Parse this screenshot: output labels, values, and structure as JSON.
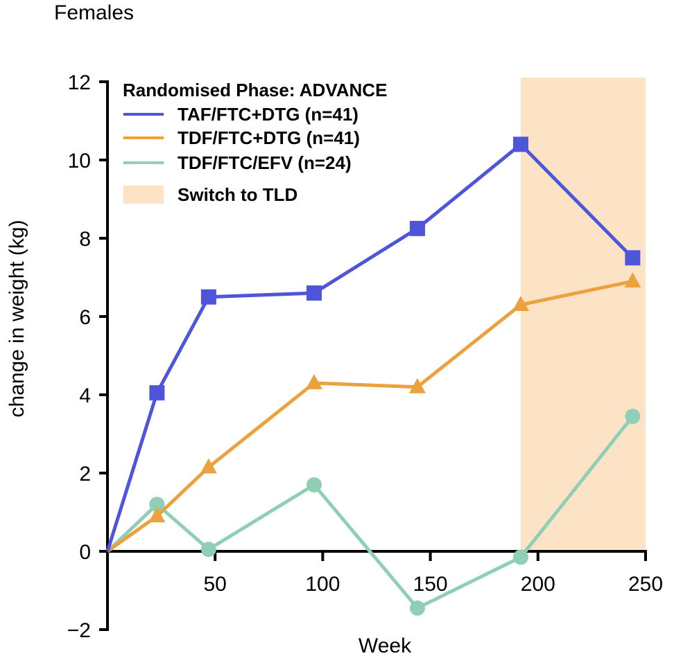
{
  "chart_data": {
    "type": "line",
    "title": "Females",
    "xlabel": "Week",
    "ylabel": "change in weight (kg)",
    "xlim": [
      0,
      250
    ],
    "ylim": [
      -2,
      12
    ],
    "x_ticks": [
      50,
      100,
      150,
      200,
      250
    ],
    "y_ticks": [
      -2,
      0,
      2,
      4,
      6,
      8,
      10,
      12
    ],
    "y_tick_labels": [
      "−2",
      "0",
      "2",
      "4",
      "6",
      "8",
      "10",
      "12"
    ],
    "shaded_region": {
      "x_range": [
        192,
        250
      ],
      "label": "Switch to TLD",
      "color": "#fde3c6"
    },
    "legend": {
      "title": "Randomised Phase: ADVANCE",
      "position": "top-left"
    },
    "series": [
      {
        "name": "TAF/FTC+DTG (n=41)",
        "color": "#4f55d9",
        "marker": "square",
        "x": [
          0,
          23,
          47,
          96,
          144,
          192,
          244
        ],
        "y": [
          0,
          4.05,
          6.5,
          6.6,
          8.25,
          10.4,
          7.5
        ]
      },
      {
        "name": "TDF/FTC+DTG (n=41)",
        "color": "#eba23e",
        "marker": "triangle",
        "x": [
          0,
          23,
          47,
          96,
          144,
          192,
          244
        ],
        "y": [
          0,
          0.9,
          2.15,
          4.3,
          4.2,
          6.3,
          6.9
        ]
      },
      {
        "name": "TDF/FTC/EFV (n=24)",
        "color": "#8ecfb5",
        "marker": "circle",
        "x": [
          0,
          23,
          47,
          96,
          144,
          192,
          244
        ],
        "y": [
          0,
          1.2,
          0.05,
          1.7,
          -1.45,
          -0.15,
          3.45
        ]
      }
    ]
  }
}
